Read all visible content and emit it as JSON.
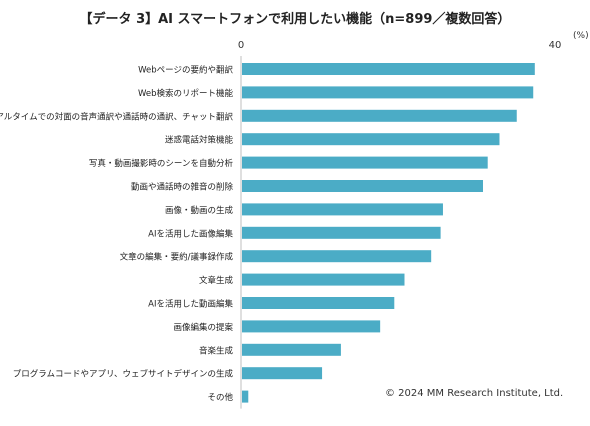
{
  "chart_data": {
    "type": "bar",
    "orientation": "horizontal",
    "title": "【データ 3】AI スマートフォンで利用したい機能（n=899／複数回答）",
    "unit_label": "(%)",
    "xlim": [
      0,
      40
    ],
    "tick_labels": [
      "0",
      "40"
    ],
    "bar_color": "#4BACC6",
    "grid": false,
    "categories": [
      "Webページの要約や翻訳",
      "Web検索のリポート機能",
      "リアルタイムでの対面の音声通訳や通話時の通訳、チャット翻訳",
      "迷惑電話対策機能",
      "写真・動画撮影時のシーンを自動分析",
      "動画や通話時の雑音の削除",
      "画像・動画の生成",
      "AIを活用した画像編集",
      "文章の編集・要約/議事録作成",
      "文章生成",
      "AIを活用した動画編集",
      "画像編集の提案",
      "音楽生成",
      "プログラムコードやアプリ、ウェブサイトデザインの生成",
      "その他"
    ],
    "values": [
      37.3,
      37.1,
      35.0,
      32.8,
      31.3,
      30.7,
      25.6,
      25.3,
      24.1,
      20.7,
      19.4,
      17.6,
      12.6,
      10.2,
      0.8
    ]
  },
  "copyright": "© 2024 MM Research Institute, Ltd."
}
